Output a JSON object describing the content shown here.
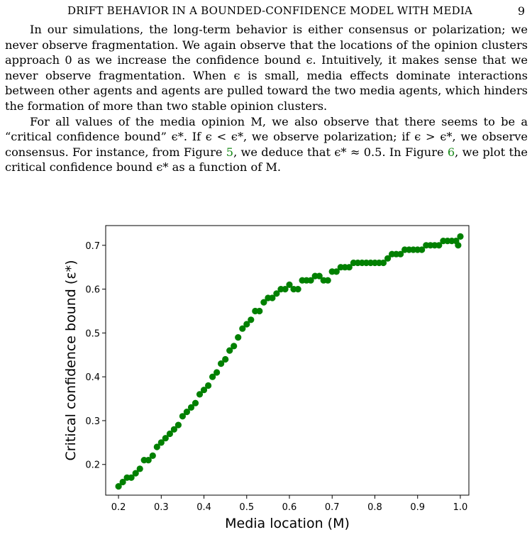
{
  "header": {
    "running_title": "DRIFT BEHAVIOR IN A BOUNDED-CONFIDENCE MODEL WITH MEDIA",
    "page_number": "9"
  },
  "body": {
    "p1": "In our simulations, the long-term behavior is either consensus or polarization; we never observe fragmentation. We again observe that the locations of the opinion clusters approach 0 as we increase the confidence bound ϵ. Intuitively, it makes sense that we never observe fragmentation. When ϵ is small, media effects dominate interactions between other agents and agents are pulled toward the two media agents, which hinders the formation of more than two stable opinion clusters.",
    "p2_a": "For all values of the media opinion M, we also observe that there seems to be a “critical confidence bound” ϵ*. If ϵ < ϵ*, we observe polarization; if ϵ > ϵ*, we observe consensus. For instance, from Figure ",
    "p2_ref1": "5",
    "p2_b": ", we deduce that ϵ* ≈ 0.5. In Figure ",
    "p2_ref2": "6",
    "p2_c": ", we plot the critical confidence bound ϵ* as a function of M."
  },
  "colors": {
    "marker": "#008000",
    "link": "#1a8a1a"
  },
  "chart_data": {
    "type": "scatter",
    "xlabel": "Media location (M)",
    "ylabel": "Critical confidence bound (ε*)",
    "xlim": [
      0.17,
      1.02
    ],
    "ylim": [
      0.13,
      0.745
    ],
    "xticks": [
      "0.2",
      "0.3",
      "0.4",
      "0.5",
      "0.6",
      "0.7",
      "0.8",
      "0.9",
      "1.0"
    ],
    "yticks": [
      "0.2",
      "0.3",
      "0.4",
      "0.5",
      "0.6",
      "0.7"
    ],
    "grid": false,
    "series": [
      {
        "points": [
          [
            0.2,
            0.15
          ],
          [
            0.21,
            0.16
          ],
          [
            0.22,
            0.17
          ],
          [
            0.23,
            0.17
          ],
          [
            0.24,
            0.18
          ],
          [
            0.25,
            0.19
          ],
          [
            0.26,
            0.21
          ],
          [
            0.27,
            0.21
          ],
          [
            0.28,
            0.22
          ],
          [
            0.29,
            0.24
          ],
          [
            0.3,
            0.25
          ],
          [
            0.31,
            0.26
          ],
          [
            0.32,
            0.27
          ],
          [
            0.33,
            0.28
          ],
          [
            0.34,
            0.29
          ],
          [
            0.35,
            0.31
          ],
          [
            0.36,
            0.32
          ],
          [
            0.37,
            0.33
          ],
          [
            0.38,
            0.34
          ],
          [
            0.39,
            0.36
          ],
          [
            0.4,
            0.37
          ],
          [
            0.41,
            0.38
          ],
          [
            0.42,
            0.4
          ],
          [
            0.43,
            0.41
          ],
          [
            0.44,
            0.43
          ],
          [
            0.45,
            0.44
          ],
          [
            0.46,
            0.46
          ],
          [
            0.47,
            0.47
          ],
          [
            0.48,
            0.49
          ],
          [
            0.49,
            0.51
          ],
          [
            0.5,
            0.52
          ],
          [
            0.51,
            0.53
          ],
          [
            0.52,
            0.55
          ],
          [
            0.53,
            0.55
          ],
          [
            0.54,
            0.57
          ],
          [
            0.55,
            0.58
          ],
          [
            0.56,
            0.58
          ],
          [
            0.57,
            0.59
          ],
          [
            0.58,
            0.6
          ],
          [
            0.59,
            0.6
          ],
          [
            0.6,
            0.61
          ],
          [
            0.61,
            0.6
          ],
          [
            0.62,
            0.6
          ],
          [
            0.63,
            0.62
          ],
          [
            0.64,
            0.62
          ],
          [
            0.65,
            0.62
          ],
          [
            0.66,
            0.63
          ],
          [
            0.67,
            0.63
          ],
          [
            0.68,
            0.62
          ],
          [
            0.69,
            0.62
          ],
          [
            0.7,
            0.64
          ],
          [
            0.71,
            0.64
          ],
          [
            0.72,
            0.65
          ],
          [
            0.73,
            0.65
          ],
          [
            0.74,
            0.65
          ],
          [
            0.75,
            0.66
          ],
          [
            0.76,
            0.66
          ],
          [
            0.77,
            0.66
          ],
          [
            0.78,
            0.66
          ],
          [
            0.79,
            0.66
          ],
          [
            0.8,
            0.66
          ],
          [
            0.81,
            0.66
          ],
          [
            0.82,
            0.66
          ],
          [
            0.83,
            0.67
          ],
          [
            0.84,
            0.68
          ],
          [
            0.85,
            0.68
          ],
          [
            0.86,
            0.68
          ],
          [
            0.87,
            0.69
          ],
          [
            0.88,
            0.69
          ],
          [
            0.89,
            0.69
          ],
          [
            0.9,
            0.69
          ],
          [
            0.91,
            0.69
          ],
          [
            0.92,
            0.7
          ],
          [
            0.93,
            0.7
          ],
          [
            0.94,
            0.7
          ],
          [
            0.95,
            0.7
          ],
          [
            0.96,
            0.71
          ],
          [
            0.97,
            0.71
          ],
          [
            0.98,
            0.71
          ],
          [
            0.99,
            0.71
          ],
          [
            0.995,
            0.7
          ],
          [
            1.0,
            0.72
          ]
        ]
      }
    ]
  }
}
